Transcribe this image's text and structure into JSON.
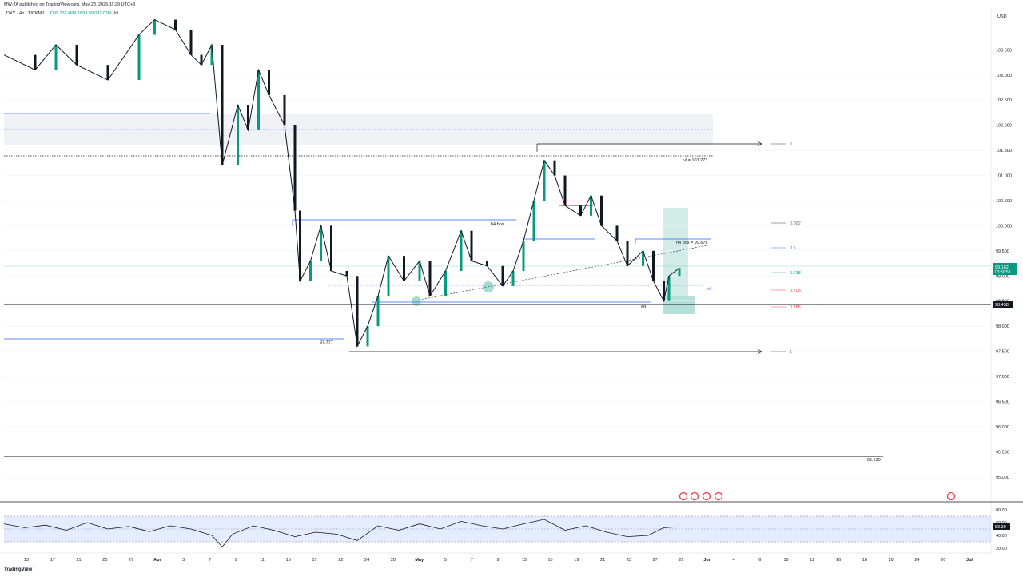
{
  "header": {
    "published": "MW-TA published on TradingView.com, May 28, 2025 11:29 UTC+3"
  },
  "legend": {
    "symbol": "DXY · 4h · TICKMILL",
    "open": "O99.133",
    "high": "H99.189",
    "low": "L99.081",
    "close": "C99",
    "vol": "Vol"
  },
  "footer": {
    "logo": "TradingView"
  },
  "colors": {
    "up": "#089981",
    "down": "#131722",
    "blue_line": "#2962ff",
    "red": "#f23645",
    "rsi_band": "#2962ff",
    "zone": "#e0e3eb",
    "box_green": "#089981"
  },
  "chart_data": {
    "type": "candlestick",
    "timeframe": "4h",
    "currency_label": "USD",
    "ylim": [
      94.6,
      104.3
    ],
    "y_ticks": [
      "103.500",
      "103.000",
      "102.500",
      "102.000",
      "101.500",
      "101.000",
      "100.500",
      "100.000",
      "99.500",
      "99.000",
      "98.500",
      "98.000",
      "97.500",
      "97.000",
      "96.500",
      "96.000",
      "95.500",
      "95.000"
    ],
    "x_ticks": [
      "13",
      "17",
      "21",
      "25",
      "27",
      "Apr",
      "3",
      "7",
      "9",
      "11",
      "15",
      "17",
      "22",
      "24",
      "28",
      "May",
      "5",
      "7",
      "9",
      "13",
      "15",
      "19",
      "21",
      "23",
      "27",
      "29",
      "Jun",
      "4",
      "6",
      "10",
      "12",
      "16",
      "18",
      "20",
      "24",
      "26",
      "Jul"
    ],
    "price_path": [
      [
        0,
        103.4
      ],
      [
        6,
        103.1
      ],
      [
        10,
        103.6
      ],
      [
        14,
        103.2
      ],
      [
        20,
        102.9
      ],
      [
        26,
        103.8
      ],
      [
        29,
        104.1
      ],
      [
        33,
        103.9
      ],
      [
        36,
        103.4
      ],
      [
        38,
        103.2
      ],
      [
        40,
        103.6
      ],
      [
        42,
        101.2
      ],
      [
        45,
        102.4
      ],
      [
        47,
        101.9
      ],
      [
        49,
        103.1
      ],
      [
        51,
        102.6
      ],
      [
        54,
        102.0
      ],
      [
        56,
        100.3
      ],
      [
        57,
        98.9
      ],
      [
        59,
        99.3
      ],
      [
        61,
        100.0
      ],
      [
        63,
        99.1
      ],
      [
        66,
        99.0
      ],
      [
        68,
        97.6
      ],
      [
        70,
        98.0
      ],
      [
        72,
        98.6
      ],
      [
        74,
        99.4
      ],
      [
        77,
        98.9
      ],
      [
        80,
        99.3
      ],
      [
        82,
        98.6
      ],
      [
        85,
        99.1
      ],
      [
        88,
        99.9
      ],
      [
        90,
        99.3
      ],
      [
        93,
        99.2
      ],
      [
        96,
        98.8
      ],
      [
        98,
        99.1
      ],
      [
        100,
        99.7
      ],
      [
        102,
        100.5
      ],
      [
        104,
        101.3
      ],
      [
        106,
        101.0
      ],
      [
        108,
        100.4
      ],
      [
        111,
        100.2
      ],
      [
        113,
        100.6
      ],
      [
        115,
        100.0
      ],
      [
        118,
        99.7
      ],
      [
        120,
        99.2
      ],
      [
        123,
        99.5
      ],
      [
        125,
        98.9
      ],
      [
        127,
        98.5
      ],
      [
        128,
        99.0
      ],
      [
        130,
        99.16
      ]
    ],
    "horizontal_levels": [
      {
        "label": "lvl = 101.273",
        "value": 101.273
      },
      {
        "label": "h4 bos = 99.676",
        "value": 99.676
      },
      {
        "label": "97.777",
        "value": 97.777
      },
      {
        "label": "95.530",
        "value": 95.53
      },
      {
        "label": "h4 bos",
        "value": 100.05
      },
      {
        "label": "eq",
        "value": 98.44
      },
      {
        "label": "lvl",
        "value": 98.86
      }
    ],
    "fibonacci": [
      {
        "label": "0",
        "value": 101.5
      },
      {
        "label": "0.382",
        "value": 100.0
      },
      {
        "label": "0.5",
        "value": 99.52
      },
      {
        "label": "0.618",
        "value": 99.05
      },
      {
        "label": "0.705",
        "value": 98.71
      },
      {
        "label": "0.786",
        "value": 98.39
      },
      {
        "label": "1",
        "value": 97.5
      }
    ],
    "last_price": {
      "value": "99.162",
      "countdown": "03:30:53"
    },
    "marker_price": "98.438",
    "rsi": {
      "current": "53.39",
      "ticks": [
        "80.00",
        "60.00",
        "40.00",
        "20.00"
      ],
      "ylim": [
        15,
        85
      ],
      "band": [
        30,
        70
      ],
      "path": [
        [
          0,
          58
        ],
        [
          4,
          52
        ],
        [
          8,
          56
        ],
        [
          12,
          48
        ],
        [
          16,
          60
        ],
        [
          20,
          50
        ],
        [
          24,
          54
        ],
        [
          28,
          46
        ],
        [
          32,
          55
        ],
        [
          36,
          50
        ],
        [
          40,
          40
        ],
        [
          42,
          22
        ],
        [
          44,
          42
        ],
        [
          48,
          55
        ],
        [
          52,
          48
        ],
        [
          56,
          38
        ],
        [
          60,
          45
        ],
        [
          64,
          42
        ],
        [
          68,
          32
        ],
        [
          72,
          55
        ],
        [
          76,
          48
        ],
        [
          80,
          58
        ],
        [
          84,
          50
        ],
        [
          88,
          62
        ],
        [
          92,
          55
        ],
        [
          96,
          50
        ],
        [
          100,
          58
        ],
        [
          104,
          65
        ],
        [
          108,
          48
        ],
        [
          112,
          55
        ],
        [
          116,
          45
        ],
        [
          120,
          38
        ],
        [
          124,
          40
        ],
        [
          127,
          52
        ],
        [
          130,
          53.39
        ]
      ]
    }
  }
}
